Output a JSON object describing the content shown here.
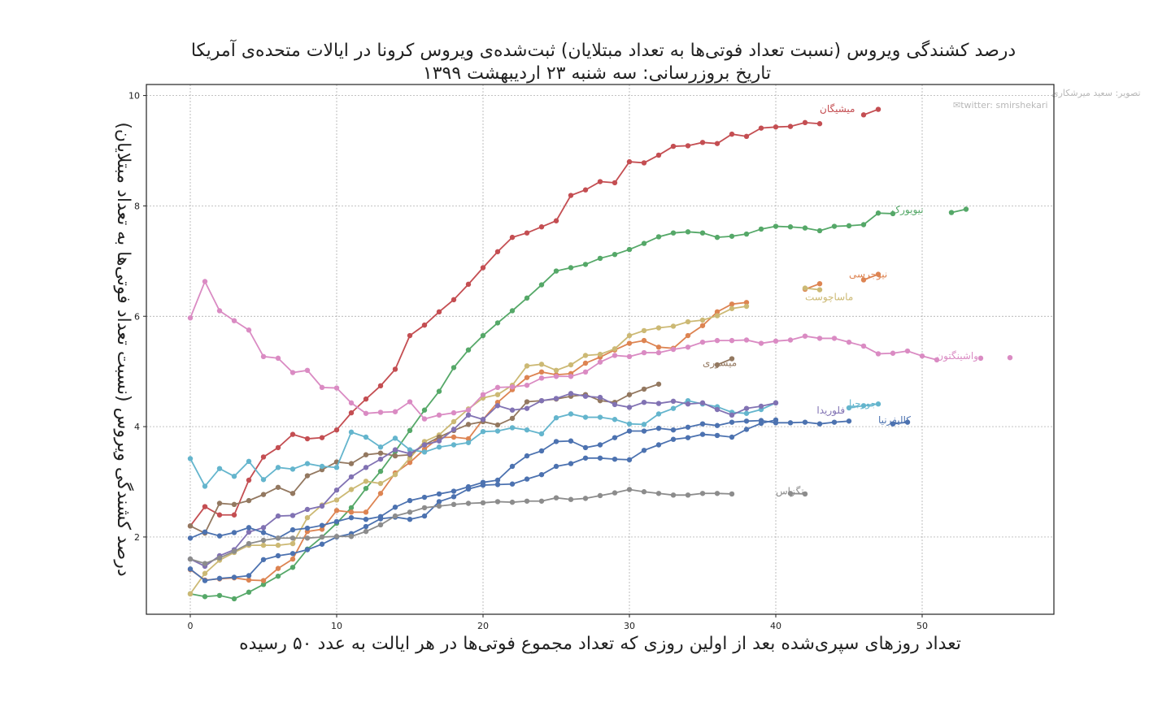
{
  "chart_data": {
    "type": "line",
    "title": "درصد کشندگی ویروس (نسبت تعداد فوتی‌ها به تعداد مبتلایان) ثبت‌شده‌ی ویروس کرونا در ایالات متحده‌ی آمریکا",
    "subtitle": "تاریخ بروزرسانی: سه شنبه ۲۳ اردیبهشت ۱۳۹۹",
    "xlabel": "تعداد روزهای سپری‌شده بعد از اولین روزی که تعداد مجموع فوتی‌ها در هر ایالت به عدد ۵۰ رسیده",
    "ylabel": "درصد کشندگی ویروس (نسبت تعداد فوتی‌ها به تعداد مبتلایان)",
    "credit_line1": "تصویر: سعید میرشکاری",
    "credit_line2": "✉twitter: smirshekari",
    "xlim": [
      -3,
      59
    ],
    "ylim": [
      0.6,
      10.2
    ],
    "x_ticks": [
      0,
      10,
      20,
      30,
      40,
      50
    ],
    "y_ticks": [
      2,
      4,
      6,
      8,
      10
    ],
    "grid": true,
    "series": [
      {
        "name": "میشیگان",
        "color": "#c44e52",
        "y": [
          2.2,
          2.55,
          2.4,
          2.4,
          3.03,
          3.45,
          3.62,
          3.86,
          3.78,
          3.8,
          3.94,
          4.25,
          4.5,
          4.74,
          5.04,
          5.65,
          5.84,
          6.08,
          6.3,
          6.58,
          6.88,
          7.17,
          7.43,
          7.51,
          7.62,
          7.73,
          8.19,
          8.29,
          8.44,
          8.42,
          8.8,
          8.78,
          8.92,
          9.08,
          9.09,
          9.15,
          9.13,
          9.3,
          9.26,
          9.41,
          9.43,
          9.44,
          9.51,
          9.49,
          null,
          null,
          9.65,
          9.75
        ]
      },
      {
        "name": "نیویورک",
        "color": "#55a868",
        "y": [
          0.97,
          0.92,
          0.94,
          0.88,
          1.0,
          1.14,
          1.29,
          1.45,
          1.78,
          2.0,
          2.25,
          2.53,
          2.88,
          3.19,
          3.55,
          3.93,
          4.3,
          4.64,
          5.07,
          5.39,
          5.65,
          5.88,
          6.1,
          6.33,
          6.57,
          6.82,
          6.88,
          6.94,
          7.05,
          7.12,
          7.21,
          7.32,
          7.44,
          7.51,
          7.53,
          7.51,
          7.43,
          7.45,
          7.49,
          7.58,
          7.63,
          7.62,
          7.6,
          7.55,
          7.63,
          7.64,
          7.66,
          7.87,
          7.86,
          null,
          null,
          null,
          7.88,
          7.94
        ]
      },
      {
        "name": "نیوجرسی",
        "color": "#dd8452",
        "y": [
          1.41,
          1.22,
          1.24,
          1.26,
          1.22,
          1.21,
          1.43,
          1.6,
          2.1,
          2.14,
          2.48,
          2.45,
          2.45,
          2.79,
          3.16,
          3.35,
          3.59,
          3.8,
          3.81,
          3.78,
          4.13,
          4.44,
          4.67,
          4.89,
          4.99,
          4.94,
          4.96,
          5.15,
          5.26,
          5.39,
          5.51,
          5.56,
          5.44,
          5.42,
          5.65,
          5.83,
          6.08,
          6.22,
          6.25,
          null,
          null,
          null,
          6.49,
          6.59,
          null,
          null,
          6.66,
          6.76
        ]
      },
      {
        "name": "ماساچوست",
        "color": "#ccb974",
        "y": [
          0.97,
          1.34,
          1.58,
          1.72,
          1.85,
          1.85,
          1.85,
          1.88,
          2.35,
          2.58,
          2.67,
          2.86,
          3.01,
          2.97,
          3.13,
          3.43,
          3.73,
          3.85,
          4.09,
          4.32,
          4.52,
          4.58,
          4.75,
          5.1,
          5.13,
          5.02,
          5.12,
          5.29,
          5.31,
          5.41,
          5.65,
          5.74,
          5.79,
          5.82,
          5.9,
          5.93,
          6.01,
          6.14,
          6.18,
          null,
          null,
          null,
          6.51,
          6.48
        ]
      },
      {
        "name": "واشینگتون",
        "color": "#da8bc3",
        "y": [
          5.97,
          6.63,
          6.1,
          5.92,
          5.75,
          5.27,
          5.24,
          4.98,
          5.02,
          4.71,
          4.7,
          4.43,
          4.24,
          4.26,
          4.27,
          4.45,
          4.14,
          4.21,
          4.25,
          4.3,
          4.58,
          4.71,
          4.72,
          4.75,
          4.88,
          4.91,
          4.91,
          4.99,
          5.17,
          5.29,
          5.27,
          5.34,
          5.34,
          5.4,
          5.44,
          5.53,
          5.56,
          5.56,
          5.57,
          5.51,
          5.55,
          5.57,
          5.64,
          5.6,
          5.6,
          5.53,
          5.46,
          5.32,
          5.33,
          5.37,
          5.28,
          5.21,
          null,
          null,
          5.24,
          null,
          5.25
        ]
      },
      {
        "name": "میسوری",
        "color": "#937860",
        "y": [
          2.2,
          2.07,
          2.61,
          2.59,
          2.66,
          2.77,
          2.9,
          2.79,
          3.11,
          3.22,
          3.36,
          3.33,
          3.49,
          3.52,
          3.47,
          3.49,
          3.67,
          3.81,
          3.93,
          4.04,
          4.09,
          4.03,
          4.15,
          4.45,
          4.47,
          4.5,
          4.55,
          4.58,
          4.47,
          4.44,
          4.58,
          4.68,
          4.77,
          null,
          null,
          null,
          5.12,
          5.23
        ]
      },
      {
        "name": "جورجیا",
        "color": "#64b5cd",
        "y": [
          3.42,
          2.92,
          3.24,
          3.1,
          3.37,
          3.04,
          3.26,
          3.23,
          3.33,
          3.28,
          3.26,
          3.9,
          3.81,
          3.63,
          3.79,
          3.58,
          3.54,
          3.63,
          3.67,
          3.71,
          3.91,
          3.92,
          3.98,
          3.94,
          3.87,
          4.16,
          4.23,
          4.17,
          4.17,
          4.13,
          4.05,
          4.04,
          4.23,
          4.33,
          4.47,
          4.41,
          4.36,
          4.26,
          4.24,
          4.31,
          4.43,
          null,
          null,
          null,
          null,
          4.34,
          4.38,
          4.41
        ]
      },
      {
        "name": "فلوریدا",
        "color": "#8172b3",
        "y": [
          1.6,
          1.47,
          1.66,
          1.77,
          2.09,
          2.17,
          2.38,
          2.39,
          2.5,
          2.56,
          2.85,
          3.09,
          3.26,
          3.41,
          3.58,
          3.51,
          3.67,
          3.74,
          3.95,
          4.21,
          4.13,
          4.38,
          4.3,
          4.33,
          4.47,
          4.51,
          4.6,
          4.55,
          4.53,
          4.4,
          4.35,
          4.44,
          4.42,
          4.46,
          4.41,
          4.43,
          4.31,
          4.21,
          4.33,
          4.37,
          4.43
        ]
      },
      {
        "name": "کالیفرنیا",
        "color": "#4c72b0",
        "y": [
          1.98,
          2.09,
          2.02,
          2.08,
          2.17,
          2.08,
          1.98,
          2.13,
          2.16,
          2.21,
          2.28,
          2.35,
          2.32,
          2.37,
          2.54,
          2.66,
          2.72,
          2.78,
          2.83,
          2.91,
          2.99,
          3.03,
          3.28,
          3.47,
          3.56,
          3.73,
          3.74,
          3.62,
          3.67,
          3.8,
          3.92,
          3.92,
          3.97,
          3.94,
          3.99,
          4.05,
          4.02,
          4.08,
          4.1,
          4.11,
          4.07,
          4.07,
          4.08,
          4.05,
          4.08,
          4.1,
          null,
          null,
          4.05,
          4.08
        ]
      },
      {
        "name": "لوئیزیانا",
        "color": "#4c72b0",
        "y": [
          1.42,
          1.21,
          1.25,
          1.27,
          1.3,
          1.59,
          1.66,
          1.7,
          1.77,
          1.87,
          2.0,
          2.06,
          2.19,
          2.33,
          2.36,
          2.32,
          2.38,
          2.64,
          2.73,
          2.87,
          2.94,
          2.95,
          2.96,
          3.05,
          3.13,
          3.28,
          3.33,
          3.43,
          3.43,
          3.41,
          3.4,
          3.57,
          3.67,
          3.77,
          3.8,
          3.86,
          3.84,
          3.81,
          3.95,
          4.06,
          4.12
        ]
      },
      {
        "name": "تگزاس",
        "color": "#8c8c8c",
        "y": [
          1.6,
          1.52,
          1.62,
          1.74,
          1.88,
          1.94,
          1.98,
          1.98,
          1.98,
          2.0,
          2.01,
          2.01,
          2.1,
          2.22,
          2.38,
          2.45,
          2.53,
          2.56,
          2.59,
          2.61,
          2.62,
          2.64,
          2.63,
          2.65,
          2.65,
          2.71,
          2.68,
          2.7,
          2.75,
          2.8,
          2.86,
          2.82,
          2.79,
          2.76,
          2.76,
          2.79,
          2.79,
          2.78,
          null,
          null,
          null,
          2.79,
          2.78
        ]
      }
    ]
  }
}
